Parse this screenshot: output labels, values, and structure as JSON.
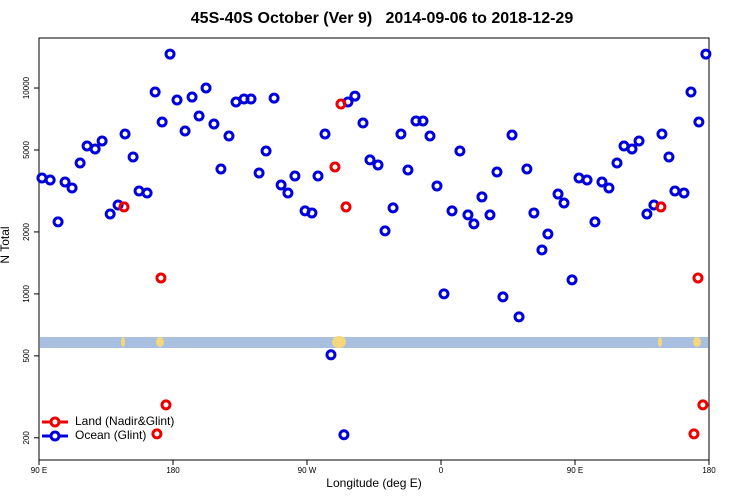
{
  "chart_data": {
    "type": "scatter",
    "title": "45S-40S October (Ver 9)   2014-09-06 to 2018-12-29",
    "x_label": "Longitude (deg E)",
    "y_label": "N Total",
    "xlim": [
      90,
      540
    ],
    "xticks": [
      {
        "value": 90,
        "label": "90 E"
      },
      180,
      {
        "value": 270,
        "label": "90 W"
      },
      {
        "value": 360,
        "label": "0"
      },
      {
        "value": 450,
        "label": "90 E"
      },
      {
        "value": 540,
        "label": "180"
      }
    ],
    "ylim": [
      156,
      17500
    ],
    "log_y": true,
    "yticks": [
      200,
      500,
      1000,
      2000,
      5000,
      10000
    ],
    "grid": false,
    "legend": "lower left",
    "series": [
      {
        "name": "Land (Nadir&Glint)",
        "color": "#ee0000",
        "x": [
          147.1,
          171.9,
          175.3,
          169.2,
          288.8,
          292.8,
          296.2,
          507.7,
          532.6,
          535.9,
          529.9
        ],
        "values": [
          2645,
          1195,
          289,
          209,
          4137,
          8360,
          2645,
          2645,
          1195,
          289,
          209
        ]
      },
      {
        "name": "Ocean (Glint)",
        "color": "#0000dd",
        "x": [
          92.0,
          97.5,
          102.8,
          107.5,
          112.2,
          117.6,
          122.3,
          127.7,
          132.4,
          137.8,
          143.1,
          147.8,
          153.2,
          157.2,
          162.6,
          168.0,
          172.7,
          178.0,
          182.7,
          188.1,
          192.8,
          197.5,
          202.2,
          207.5,
          212.2,
          217.6,
          222.3,
          227.7,
          232.4,
          237.8,
          242.5,
          247.9,
          252.6,
          257.2,
          261.9,
          268.7,
          273.3,
          277.4,
          282.1,
          286.1,
          294.8,
          297.5,
          302.2,
          307.6,
          312.3,
          317.7,
          322.4,
          327.8,
          333.1,
          337.8,
          343.2,
          347.9,
          352.6,
          357.3,
          362.0,
          367.4,
          372.7,
          378.1,
          382.1,
          387.5,
          392.9,
          397.6,
          401.6,
          407.7,
          412.4,
          417.7,
          422.4,
          427.8,
          431.8,
          438.6,
          442.6,
          448.0,
          452.7,
          458.1,
          463.4,
          468.1,
          472.8,
          478.2,
          482.9,
          488.3,
          493.0,
          498.3,
          503.0,
          508.4,
          513.1,
          517.1,
          523.2,
          527.9,
          533.2,
          537.9
        ],
        "values": [
          3656,
          3575,
          2237,
          3497,
          3271,
          4325,
          5230,
          5058,
          5529,
          2445,
          2704,
          5980,
          4626,
          3162,
          3092,
          9570,
          6840,
          14620,
          8750,
          6185,
          9040,
          7315,
          10000,
          6690,
          4045,
          5845,
          8550,
          8850,
          8850,
          3865,
          4945,
          8935,
          3380,
          3092,
          3740,
          2530,
          2473,
          3740,
          5980,
          506,
          207,
          8550,
          9140,
          6760,
          4475,
          4230,
          2023,
          2616,
          5980,
          4000,
          6920,
          6920,
          5845,
          3345,
          1000,
          2530,
          4945,
          2420,
          2188,
          2958,
          2420,
          3910,
          967,
          5915,
          773,
          4045,
          2473,
          1635,
          1955,
          3055,
          2765,
          1170,
          3656,
          3575,
          2237,
          3497,
          3271,
          4325,
          5230,
          5058,
          5529,
          2445,
          2704,
          5980,
          4626,
          3162,
          3092,
          9570,
          6840,
          14620
        ]
      }
    ]
  }
}
